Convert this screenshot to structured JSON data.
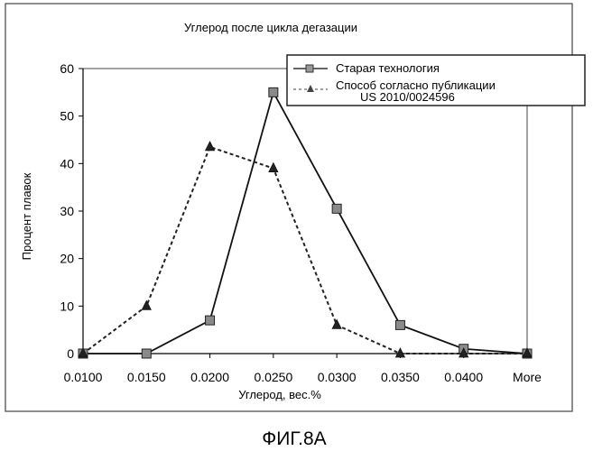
{
  "chart_data": {
    "type": "line",
    "title": "Углерод после цикла дегазации",
    "xlabel": "Углерод, вес.%",
    "ylabel": "Процент плавок",
    "categories": [
      "0.0100",
      "0.0150",
      "0.0200",
      "0.0250",
      "0.0300",
      "0.0350",
      "0.0400",
      "More"
    ],
    "ylim": [
      0,
      60
    ],
    "yticks": [
      "0",
      "10",
      "20",
      "30",
      "40",
      "50",
      "60"
    ],
    "grid": false,
    "legend_position": "top-right",
    "series": [
      {
        "name": "Старая технология",
        "values": [
          0,
          0,
          7,
          55,
          30.5,
          6,
          1,
          0
        ],
        "marker": "square",
        "line": "solid"
      },
      {
        "name": "Способ согласно публикации",
        "name_line2": "US 2010/0024596",
        "values": [
          0,
          10,
          43.5,
          39,
          6,
          0,
          0,
          0
        ],
        "marker": "triangle",
        "line": "dashed"
      }
    ]
  },
  "caption": "ФИГ.8A"
}
